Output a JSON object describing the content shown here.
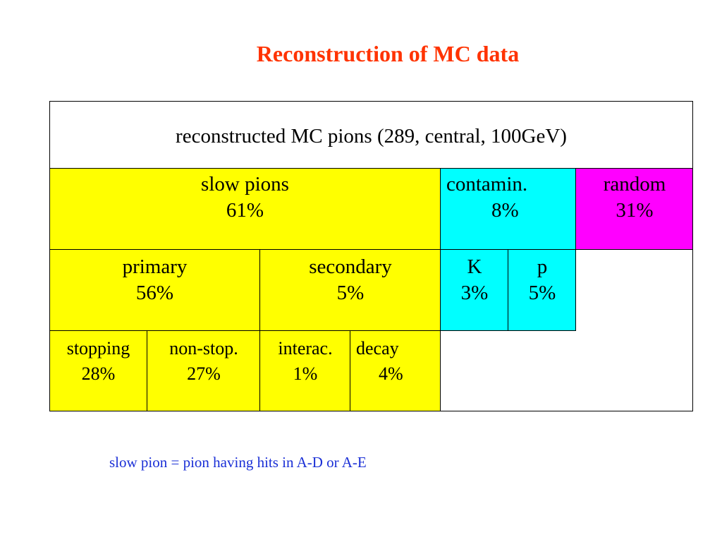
{
  "title": "Reconstruction of MC data",
  "table": {
    "header": "reconstructed MC pions  (289, central, 100GeV)",
    "level1": {
      "slow_pions": {
        "label": "slow pions",
        "value": "61%"
      },
      "contamin": {
        "label": "contamin.",
        "value": "8%"
      },
      "random": {
        "label": "random",
        "value": "31%"
      }
    },
    "level2": {
      "primary": {
        "label": "primary",
        "value": "56%"
      },
      "secondary": {
        "label": "secondary",
        "value": "5%"
      },
      "k": {
        "label": "K",
        "value": "3%"
      },
      "p": {
        "label": "p",
        "value": "5%"
      }
    },
    "level3": {
      "stopping": {
        "label": "stopping",
        "value": "28%"
      },
      "non_stop": {
        "label": "non-stop.",
        "value": "27%"
      },
      "interac": {
        "label": "interac.",
        "value": "1%"
      },
      "decay": {
        "label": "decay",
        "value": "4%"
      }
    }
  },
  "footnote": "slow pion = pion having hits in A-D or A-E",
  "colors": {
    "title": "#ff3300",
    "yellow": "#ffff00",
    "cyan": "#00ffff",
    "magenta": "#ff00ff",
    "footnote": "#1a2fd6"
  }
}
